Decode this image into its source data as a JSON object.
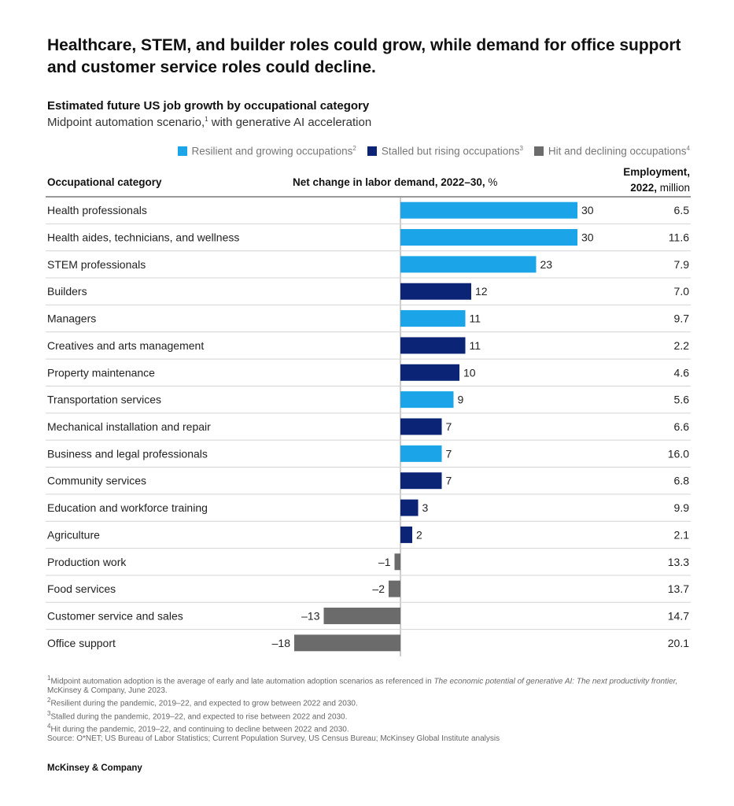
{
  "headline": "Healthcare, STEM, and builder roles could grow, while demand for office support and customer service roles could decline.",
  "chart_title": "Estimated future US job growth by occupational category",
  "subtitle": {
    "text": "Midpoint automation scenario,",
    "sup": "1",
    "tail": " with generative AI acceleration"
  },
  "legend": [
    {
      "label": "Resilient and growing occupations",
      "sup": "2",
      "color": "#1ba5e8"
    },
    {
      "label": "Stalled but rising occupations",
      "sup": "3",
      "color": "#0b2475"
    },
    {
      "label": "Hit and declining occupations",
      "sup": "4",
      "color": "#6b6b6b"
    }
  ],
  "columns": {
    "category": "Occupational category",
    "change_bold": "Net change in labor demand, 2022–30,",
    "change_unit": " %",
    "employment_line1": "Employment,",
    "employment_line2_bold": "2022,",
    "employment_line2_unit": " million"
  },
  "chart_data": {
    "type": "bar",
    "orientation": "horizontal",
    "title": "Estimated future US job growth by occupational category",
    "xlabel": "Net change in labor demand, 2022–30, %",
    "grid": false,
    "categories": [
      "Health professionals",
      "Health aides, technicians, and wellness",
      "STEM professionals",
      "Builders",
      "Managers",
      "Creatives and arts management",
      "Property maintenance",
      "Transportation services",
      "Mechanical installation and repair",
      "Business and legal professionals",
      "Community services",
      "Education and workforce training",
      "Agriculture",
      "Production work",
      "Food services",
      "Customer service and sales",
      "Office support"
    ],
    "values": [
      30,
      30,
      23,
      12,
      11,
      11,
      10,
      9,
      7,
      7,
      7,
      3,
      2,
      -1,
      -2,
      -13,
      -18
    ],
    "value_labels": [
      "30",
      "30",
      "23",
      "12",
      "11",
      "11",
      "10",
      "9",
      "7",
      "7",
      "7",
      "3",
      "2",
      "–1",
      "–2",
      "–13",
      "–18"
    ],
    "groups": [
      "resilient",
      "resilient",
      "resilient",
      "stalled",
      "resilient",
      "stalled",
      "stalled",
      "resilient",
      "stalled",
      "resilient",
      "stalled",
      "stalled",
      "stalled",
      "hit",
      "hit",
      "hit",
      "hit"
    ],
    "group_colors": {
      "resilient": "#1ba5e8",
      "stalled": "#0b2475",
      "hit": "#6b6b6b"
    },
    "employment": [
      "6.5",
      "11.6",
      "7.9",
      "7.0",
      "9.7",
      "2.2",
      "4.6",
      "5.6",
      "6.6",
      "16.0",
      "6.8",
      "9.9",
      "2.1",
      "13.3",
      "13.7",
      "14.7",
      "20.1"
    ],
    "xlim": [
      -18,
      30
    ]
  },
  "footnotes": [
    {
      "sup": "1",
      "pre": "Midpoint automation adoption is the average of early and late automation adoption scenarios as referenced in ",
      "italic": "The economic potential of generative AI: The next productivity frontier,",
      "post": " McKinsey & Company, June 2023."
    },
    {
      "sup": "2",
      "pre": "Resilient during the pandemic, 2019–22, and expected to grow between 2022 and 2030.",
      "italic": "",
      "post": ""
    },
    {
      "sup": "3",
      "pre": "Stalled during the pandemic, 2019–22, and expected to rise between 2022 and 2030.",
      "italic": "",
      "post": ""
    },
    {
      "sup": "4",
      "pre": "Hit during the pandemic, 2019–22, and continuing to decline between 2022 and 2030.",
      "italic": "",
      "post": ""
    },
    {
      "sup": "",
      "pre": "Source: O*NET; US Bureau of Labor Statistics; Current Population Survey, US Census Bureau; McKinsey Global Institute analysis",
      "italic": "",
      "post": ""
    }
  ],
  "brand": "McKinsey & Company"
}
